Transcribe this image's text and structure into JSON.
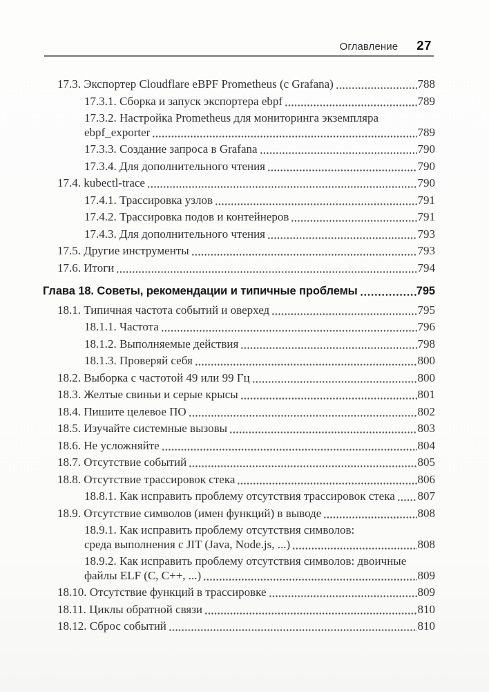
{
  "header": {
    "title": "Оглавление",
    "page_number": "27"
  },
  "toc": {
    "entries": [
      {
        "level": 1,
        "text": "17.3. Экспортер Cloudflare eBPF Prometheus (с Grafana)",
        "page": "788"
      },
      {
        "level": 2,
        "text": "17.3.1. Сборка и запуск экспортера ebpf",
        "page": "789"
      },
      {
        "level": 2,
        "text": "17.3.2. Настройка Prometheus для мониторинга экземпляра",
        "text2": "ebpf_exporter",
        "page": "789"
      },
      {
        "level": 2,
        "text": "17.3.3. Создание запроса в Grafana",
        "page": "790"
      },
      {
        "level": 2,
        "text": "17.3.4. Для дополнительного чтения",
        "page": "790"
      },
      {
        "level": 1,
        "text": "17.4. kubectl-trace",
        "page": "790"
      },
      {
        "level": 2,
        "text": "17.4.1. Трассировка узлов",
        "page": "791"
      },
      {
        "level": 2,
        "text": "17.4.2. Трассировка подов и контейнеров",
        "page": "791"
      },
      {
        "level": 2,
        "text": "17.4.3. Для дополнительного чтения",
        "page": "793"
      },
      {
        "level": 1,
        "text": "17.5. Другие инструменты",
        "page": "793"
      },
      {
        "level": 1,
        "text": "17.6. Итоги",
        "page": "794"
      },
      {
        "level": "chapter",
        "text": "Глава 18. Советы, рекомендации и типичные проблемы",
        "page": "795"
      },
      {
        "level": 1,
        "text": "18.1. Типичная частота событий и оверхед",
        "page": "795"
      },
      {
        "level": 2,
        "text": "18.1.1. Частота",
        "page": "796"
      },
      {
        "level": 2,
        "text": "18.1.2. Выполняемые действия",
        "page": "798"
      },
      {
        "level": 2,
        "text": "18.1.3. Проверяй себя",
        "page": "800"
      },
      {
        "level": 1,
        "text": "18.2. Выборка с частотой 49 или 99 Гц",
        "page": "800"
      },
      {
        "level": 1,
        "text": "18.3. Желтые свиньи и серые крысы",
        "page": "801"
      },
      {
        "level": 1,
        "text": "18.4. Пишите целевое ПО",
        "page": "802"
      },
      {
        "level": 1,
        "text": "18.5. Изучайте системные вызовы",
        "page": "803"
      },
      {
        "level": 1,
        "text": "18.6. Не усложняйте",
        "page": "804"
      },
      {
        "level": 1,
        "text": "18.7. Отсутствие событий",
        "page": "805"
      },
      {
        "level": 1,
        "text": "18.8. Отсутствие трассировок стека",
        "page": "806"
      },
      {
        "level": 2,
        "text": "18.8.1. Как исправить проблему отсутствия трассировок стека",
        "page": "807"
      },
      {
        "level": 1,
        "text": "18.9. Отсутствие символов (имен функций) в выводе",
        "page": "808"
      },
      {
        "level": 2,
        "text": "18.9.1. Как исправить проблему отсутствия символов:",
        "text2": "среда выполнения с JIT (Java, Node.js, ...)",
        "page": "808"
      },
      {
        "level": 2,
        "text": "18.9.2. Как исправить проблему отсутствия символов: двоичные",
        "text2": "файлы ELF (C, C++, ...)",
        "page": "809"
      },
      {
        "level": 1,
        "text": "18.10. Отсутствие функций в трассировке",
        "page": "809"
      },
      {
        "level": 1,
        "text": "18.11. Циклы обратной связи",
        "page": "810"
      },
      {
        "level": 1,
        "text": "18.12. Сброс событий",
        "page": "810"
      }
    ]
  }
}
